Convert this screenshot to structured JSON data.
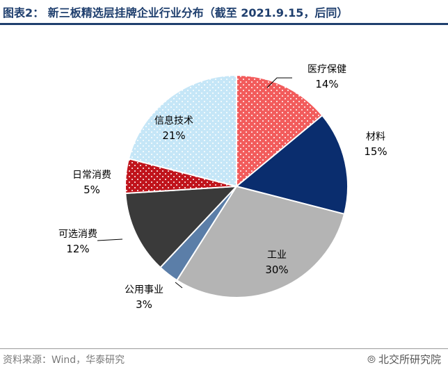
{
  "header": {
    "title": "图表2：  新三板精选层挂牌企业行业分布（截至 2021.9.15，后同）"
  },
  "footer": {
    "source": "资料来源：Wind，华泰研究",
    "watermark": "北交所研究院",
    "watermark_icon": "wechat-icon"
  },
  "colors": {
    "医疗保健": "#f25c5c",
    "材料": "#0a2d6e",
    "工业": "#b4b4b4",
    "公用事业": "#5b7ea8",
    "可选消费": "#3a3a3a",
    "日常消费": "#c0141c",
    "信息技术": "#c5e6f7"
  },
  "chart_data": {
    "type": "pie",
    "title": "新三板精选层挂牌企业行业分布（截至 2021.9.15，后同）",
    "start_angle_deg": 0,
    "direction": "clockwise",
    "slices": [
      {
        "label": "医疗保健",
        "value": 14,
        "pct": "14%"
      },
      {
        "label": "材料",
        "value": 15,
        "pct": "15%"
      },
      {
        "label": "工业",
        "value": 30,
        "pct": "30%"
      },
      {
        "label": "公用事业",
        "value": 3,
        "pct": "3%"
      },
      {
        "label": "可选消费",
        "value": 12,
        "pct": "12%"
      },
      {
        "label": "日常消费",
        "value": 5,
        "pct": "5%"
      },
      {
        "label": "信息技术",
        "value": 21,
        "pct": "21%"
      }
    ],
    "patterns": {
      "医疗保健": "dots",
      "日常消费": "dots",
      "信息技术": "dots"
    }
  }
}
